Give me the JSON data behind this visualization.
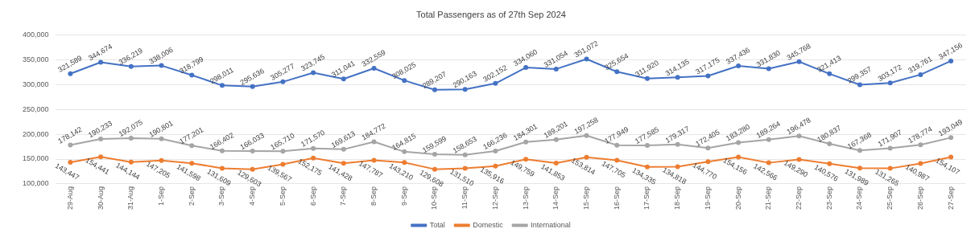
{
  "chart_data": {
    "type": "line",
    "title": "Total Passengers as of 27th Sep 2024",
    "categories": [
      "29-Aug",
      "30-Aug",
      "31-Aug",
      "1-Sep",
      "2-Sep",
      "3-Sep",
      "4-Sep",
      "5-Sep",
      "6-Sep",
      "7-Sep",
      "8-Sep",
      "9-Sep",
      "10-Sep",
      "11-Sep",
      "12-Sep",
      "13-Sep",
      "14-Sep",
      "15-Sep",
      "16-Sep",
      "17-Sep",
      "18-Sep",
      "19-Sep",
      "20-Sep",
      "21-Sep",
      "22-Sep",
      "23-Sep",
      "24-Sep",
      "25-Sep",
      "26-Sep",
      "27-Sep"
    ],
    "series": [
      {
        "name": "Total",
        "color": "#4472c4",
        "values": [
          321589,
          344674,
          336219,
          338006,
          318799,
          298011,
          295636,
          305277,
          323745,
          311041,
          332559,
          308025,
          289207,
          290163,
          302152,
          334060,
          331054,
          351072,
          325654,
          311920,
          314135,
          317175,
          337436,
          331830,
          345768,
          321413,
          299357,
          303172,
          319761,
          347156
        ],
        "value_labels": [
          "321,589",
          "344,674",
          "336,219",
          "338,006",
          "318,799",
          "298,011",
          "295,636",
          "305,277",
          "323,745",
          "311,041",
          "332,559",
          "308,025",
          "289,207",
          "290,163",
          "302,152",
          "334,060",
          "331,054",
          "351,072",
          "325,654",
          "311,920",
          "314,135",
          "317,175",
          "337,436",
          "331,830",
          "345,768",
          "321,413",
          "299,357",
          "303,172",
          "319,761",
          "347,156"
        ]
      },
      {
        "name": "Domestic",
        "color": "#ed7d31",
        "values": [
          143447,
          154441,
          144144,
          147205,
          141598,
          131609,
          129603,
          139567,
          152175,
          141428,
          147787,
          143210,
          129608,
          131510,
          135916,
          149759,
          141853,
          153814,
          147705,
          134335,
          134818,
          144770,
          154156,
          142566,
          149290,
          140576,
          131989,
          131265,
          140987,
          154107
        ],
        "value_labels": [
          "143,447",
          "154,441",
          "144,144",
          "147,205",
          "141,598",
          "131,609",
          "129,603",
          "139,567",
          "152,175",
          "141,428",
          "147,787",
          "143,210",
          "129,608",
          "131,510",
          "135,916",
          "149,759",
          "141,853",
          "153,814",
          "147,705",
          "134,335",
          "134,818",
          "144,770",
          "154,156",
          "142,566",
          "149,290",
          "140,576",
          "131,989",
          "131,265",
          "140,987",
          "154,107"
        ]
      },
      {
        "name": "International",
        "color": "#a5a5a5",
        "values": [
          178142,
          190233,
          192075,
          190801,
          177201,
          166402,
          166033,
          165710,
          171570,
          169613,
          184772,
          164815,
          159599,
          158653,
          166236,
          184301,
          189201,
          197258,
          177949,
          177585,
          179317,
          172405,
          183280,
          189264,
          196478,
          180837,
          167368,
          171907,
          178774,
          193049
        ],
        "value_labels": [
          "178,142",
          "190,233",
          "192,075",
          "190,801",
          "177,201",
          "166,402",
          "166,033",
          "165,710",
          "171,570",
          "169,613",
          "184,772",
          "164,815",
          "159,599",
          "158,653",
          "166,236",
          "184,301",
          "189,201",
          "197,258",
          "177,949",
          "177,585",
          "179,317",
          "172,405",
          "183,280",
          "189,264",
          "196,478",
          "180,837",
          "167,368",
          "171,907",
          "178,774",
          "193,049"
        ]
      }
    ],
    "ylim": [
      100000,
      400000
    ],
    "yticks": [
      {
        "value": 100000,
        "label": "100,000"
      },
      {
        "value": 150000,
        "label": "150,000"
      },
      {
        "value": 200000,
        "label": "200,000"
      },
      {
        "value": 250000,
        "label": "250,000"
      },
      {
        "value": 300000,
        "label": "300,000"
      },
      {
        "value": 350000,
        "label": "350,000"
      },
      {
        "value": 400000,
        "label": "400,000"
      }
    ],
    "grid": "y",
    "legend": "bottom",
    "marker": "circle",
    "line_style": "solid"
  }
}
